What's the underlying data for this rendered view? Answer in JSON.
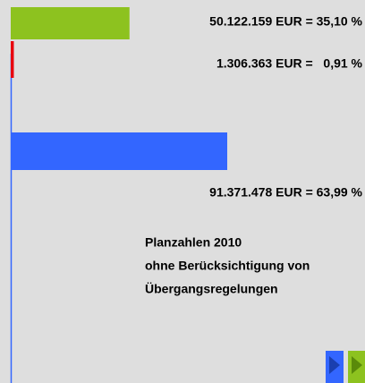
{
  "chart_data": {
    "type": "bar",
    "orientation": "horizontal",
    "values": [
      50122159,
      1306363,
      91371478
    ],
    "value_labels": [
      "50.122.159 EUR = 35,10 %",
      "1.306.363 EUR =   0,91 %",
      "91.371.478 EUR = 63,99 %"
    ],
    "colors": [
      "#8dc21f",
      "#e8000f",
      "#3366ff"
    ],
    "note": [
      "Planzahlen 2010",
      "ohne Berücksichtigung von",
      "Übergangsregelungen"
    ]
  }
}
